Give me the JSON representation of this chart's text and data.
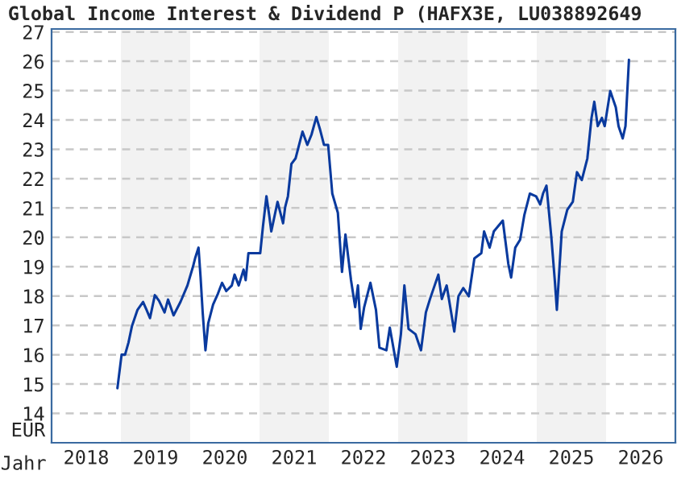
{
  "chart_data": {
    "type": "line",
    "title": "Global Income Interest & Dividend P (HAFX3E, LU038892649",
    "xlabel": "Jahr",
    "ylabel": "EUR",
    "series": [
      {
        "color": "#0a3a9e",
        "x": [
          2018.95,
          2019.01,
          2019.06,
          2019.11,
          2019.16,
          2019.24,
          2019.32,
          2019.37,
          2019.42,
          2019.49,
          2019.55,
          2019.63,
          2019.68,
          2019.76,
          2019.86,
          2019.96,
          2020.04,
          2020.07,
          2020.12,
          2020.15,
          2020.18,
          2020.22,
          2020.26,
          2020.33,
          2020.4,
          2020.46,
          2020.52,
          2020.6,
          2020.64,
          2020.7,
          2020.77,
          2020.8,
          2020.84,
          2020.94,
          2021.01,
          2021.05,
          2021.1,
          2021.14,
          2021.17,
          2021.26,
          2021.34,
          2021.37,
          2021.41,
          2021.46,
          2021.52,
          2021.62,
          2021.69,
          2021.75,
          2021.82,
          2021.87,
          2021.93,
          2021.99,
          2022.05,
          2022.13,
          2022.19,
          2022.24,
          2022.32,
          2022.38,
          2022.42,
          2022.46,
          2022.51,
          2022.6,
          2022.68,
          2022.73,
          2022.83,
          2022.88,
          2022.98,
          2023.04,
          2023.09,
          2023.15,
          2023.25,
          2023.33,
          2023.4,
          2023.46,
          2023.58,
          2023.63,
          2023.7,
          2023.81,
          2023.87,
          2023.94,
          2024.02,
          2024.1,
          2024.2,
          2024.24,
          2024.32,
          2024.38,
          2024.51,
          2024.59,
          2024.63,
          2024.69,
          2024.76,
          2024.82,
          2024.9,
          2024.99,
          2025.05,
          2025.09,
          2025.14,
          2025.21,
          2025.26,
          2025.29,
          2025.36,
          2025.44,
          2025.52,
          2025.58,
          2025.65,
          2025.73,
          2025.79,
          2025.83,
          2025.88,
          2025.94,
          2025.98,
          2026.06,
          2026.14,
          2026.18,
          2026.24,
          2026.28,
          2026.33
        ],
        "values": [
          14.86,
          16.0,
          16.0,
          16.42,
          16.98,
          17.53,
          17.8,
          17.53,
          17.25,
          18.03,
          17.84,
          17.44,
          17.88,
          17.34,
          17.8,
          18.36,
          19.0,
          19.28,
          19.65,
          18.63,
          17.44,
          16.15,
          17.07,
          17.71,
          18.08,
          18.45,
          18.17,
          18.36,
          18.73,
          18.36,
          18.9,
          18.54,
          19.46,
          19.46,
          19.46,
          20.38,
          21.4,
          20.75,
          20.2,
          21.21,
          20.48,
          21.03,
          21.4,
          22.5,
          22.69,
          23.6,
          23.15,
          23.5,
          24.1,
          23.7,
          23.15,
          23.15,
          21.49,
          20.84,
          18.82,
          20.1,
          18.54,
          17.62,
          18.36,
          16.88,
          17.62,
          18.45,
          17.53,
          16.24,
          16.15,
          16.92,
          15.59,
          16.7,
          18.36,
          16.88,
          16.7,
          16.15,
          17.44,
          17.9,
          18.73,
          17.9,
          18.36,
          16.79,
          17.99,
          18.27,
          17.99,
          19.28,
          19.46,
          20.2,
          19.65,
          20.2,
          20.57,
          19.09,
          18.63,
          19.65,
          19.92,
          20.75,
          21.49,
          21.4,
          21.12,
          21.49,
          21.76,
          20.01,
          18.54,
          17.53,
          20.2,
          20.94,
          21.21,
          22.22,
          21.95,
          22.69,
          24.07,
          24.62,
          23.79,
          24.07,
          23.79,
          24.99,
          24.43,
          23.79,
          23.37,
          23.79,
          26.05
        ]
      }
    ],
    "xlim": [
      2018,
      2027
    ],
    "xticks": [
      {
        "value": 2018.5,
        "label": "2018"
      },
      {
        "value": 2019.5,
        "label": "2019"
      },
      {
        "value": 2020.5,
        "label": "2020"
      },
      {
        "value": 2021.5,
        "label": "2021"
      },
      {
        "value": 2022.5,
        "label": "2022"
      },
      {
        "value": 2023.5,
        "label": "2023"
      },
      {
        "value": 2024.5,
        "label": "2024"
      },
      {
        "value": 2025.5,
        "label": "2025"
      },
      {
        "value": 2026.5,
        "label": "2026"
      }
    ],
    "ylim": [
      13,
      27.1
    ],
    "yticks": [
      14,
      15,
      16,
      17,
      18,
      19,
      20,
      21,
      22,
      23,
      24,
      25,
      26,
      27
    ],
    "bands": [
      {
        "axis": "x",
        "from": 2019,
        "to": 2020,
        "color": "#f2f2f2"
      },
      {
        "axis": "x",
        "from": 2021,
        "to": 2022,
        "color": "#f2f2f2"
      },
      {
        "axis": "x",
        "from": 2023,
        "to": 2024,
        "color": "#f2f2f2"
      },
      {
        "axis": "x",
        "from": 2025,
        "to": 2026,
        "color": "#f2f2f2"
      }
    ],
    "grid": "y",
    "line_style": "solid",
    "legend": false
  }
}
